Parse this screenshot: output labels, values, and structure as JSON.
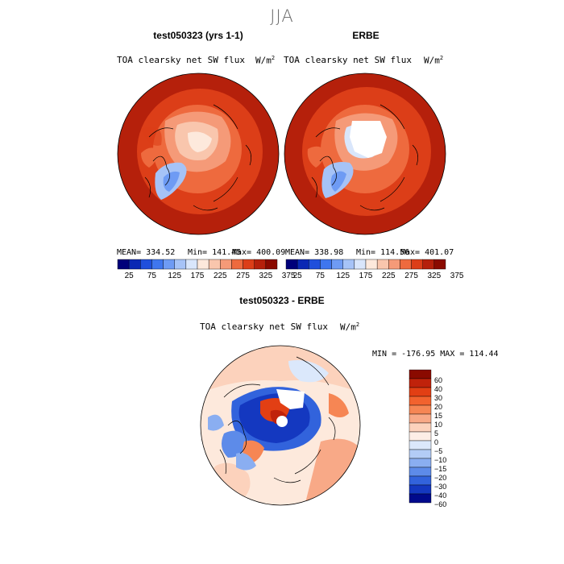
{
  "figure": {
    "season": "JJA"
  },
  "panels": [
    {
      "title": "test050323 (yrs 1-1)",
      "field": "TOA clearsky net SW flux",
      "units": "W/m",
      "units_exp": "2",
      "stats": {
        "mean": "MEAN= 334.52",
        "min": "Min= 141.45",
        "max": "Max= 400.09"
      }
    },
    {
      "title": "ERBE",
      "field": "TOA clearsky net SW flux",
      "units": "W/m",
      "units_exp": "2",
      "stats": {
        "mean": "MEAN= 338.98",
        "min": "Min= 114.56",
        "max": "Max= 401.07"
      }
    }
  ],
  "colorbar": {
    "colors": [
      "#00007a",
      "#0a28b4",
      "#1f4fdc",
      "#3f76ee",
      "#6e9bf4",
      "#a6c3f7",
      "#d9e6fb",
      "#fde9dc",
      "#f9c6ad",
      "#f59a78",
      "#ee6a3e",
      "#dc3e18",
      "#b5200b",
      "#8a0a00"
    ],
    "tick_labels": [
      "25",
      "75",
      "125",
      "175",
      "225",
      "275",
      "325",
      "375"
    ]
  },
  "difference": {
    "title": "test050323 - ERBE",
    "field": "TOA clearsky net SW flux",
    "units": "W/m",
    "units_exp": "2",
    "minmax": "MIN = -176.95 MAX = 114.44",
    "levels": [
      "60",
      "40",
      "30",
      "20",
      "15",
      "10",
      "5",
      "0",
      "−5",
      "−10",
      "−15",
      "−20",
      "−30",
      "−40",
      "−60"
    ],
    "colors": [
      "#8a0a00",
      "#c0220b",
      "#e23f14",
      "#f2622e",
      "#f68654",
      "#f8a987",
      "#fcd2bc",
      "#fdeee6",
      "#dbe8fb",
      "#b3ccf6",
      "#8aaef1",
      "#5d8be9",
      "#3263dc",
      "#1438c0",
      "#000a8c"
    ]
  }
}
